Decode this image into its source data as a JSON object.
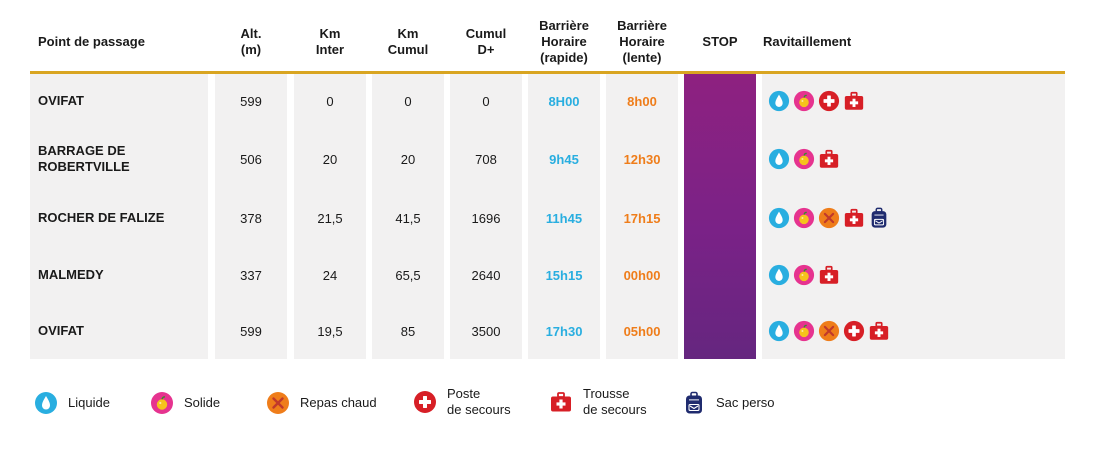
{
  "headers": {
    "point": "Point de passage",
    "alt": "Alt.\n(m)",
    "km_inter": "Km\nInter",
    "km_cumul": "Km\nCumul",
    "cumul_d": "Cumul\nD+",
    "bh_rapide": "Barrière\nHoraire\n(rapide)",
    "bh_lente": "Barrière\nHoraire\n(lente)",
    "stop": "STOP",
    "ravitaillement": "Ravitaillement"
  },
  "rows": [
    {
      "name": "OVIFAT",
      "alt": "599",
      "km_inter": "0",
      "km_cumul": "0",
      "cumul_d": "0",
      "rapide": "8H00",
      "lente": "8h00"
    },
    {
      "name": "BARRAGE DE\nROBERTVILLE",
      "alt": "506",
      "km_inter": "20",
      "km_cumul": "20",
      "cumul_d": "708",
      "rapide": "9h45",
      "lente": "12h30"
    },
    {
      "name": "ROCHER DE FALIZE",
      "alt": "378",
      "km_inter": "21,5",
      "km_cumul": "41,5",
      "cumul_d": "1696",
      "rapide": "11h45",
      "lente": "17h15"
    },
    {
      "name": "MALMEDY",
      "alt": "337",
      "km_inter": "24",
      "km_cumul": "65,5",
      "cumul_d": "2640",
      "rapide": "15h15",
      "lente": "00h00"
    },
    {
      "name": "OVIFAT",
      "alt": "599",
      "km_inter": "19,5",
      "km_cumul": "85",
      "cumul_d": "3500",
      "rapide": "17h30",
      "lente": "05h00"
    }
  ],
  "ravitaillement_rows": [
    [
      "liquide",
      "solide",
      "poste",
      "trousse"
    ],
    [
      "liquide",
      "solide",
      "trousse"
    ],
    [
      "liquide",
      "solide",
      "repas",
      "trousse",
      "sac"
    ],
    [
      "liquide",
      "solide",
      "trousse"
    ],
    [
      "liquide",
      "solide",
      "repas",
      "poste",
      "trousse"
    ]
  ],
  "legend": [
    {
      "icon": "liquide",
      "label": "Liquide"
    },
    {
      "icon": "solide",
      "label": "Solide"
    },
    {
      "icon": "repas",
      "label": "Repas chaud"
    },
    {
      "icon": "poste",
      "label": "Poste\nde secours"
    },
    {
      "icon": "trousse",
      "label": "Trousse\nde secours"
    },
    {
      "icon": "sac",
      "label": "Sac perso"
    }
  ],
  "colors": {
    "accent_line": "#d9a521",
    "rapide": "#29aee0",
    "lente": "#ef7d1a",
    "stop": "#7a2287",
    "liquide": "#29aee0",
    "solide": "#e6338f",
    "repas": "#ef7d1a",
    "poste": "#d71f26",
    "trousse": "#d71f26",
    "sac": "#1f2b6e"
  }
}
